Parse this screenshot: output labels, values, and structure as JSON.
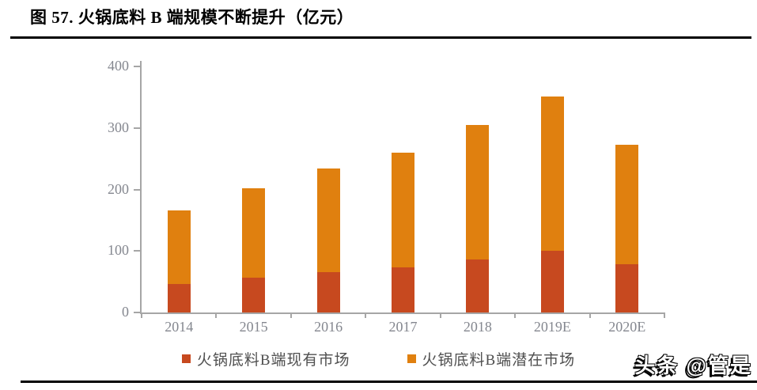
{
  "figure": {
    "title": "图 57. 火锅底料 B 端规模不断提升（亿元）"
  },
  "chart_data": {
    "type": "bar",
    "stacked": true,
    "title": "火锅底料 B 端规模不断提升",
    "unit": "亿元",
    "categories": [
      "2014",
      "2015",
      "2016",
      "2017",
      "2018",
      "2019E",
      "2020E"
    ],
    "series": [
      {
        "name": "火锅底料B端现有市场",
        "color": "#c7491f",
        "values": [
          46,
          57,
          66,
          73,
          86,
          100,
          78
        ]
      },
      {
        "name": "火锅底料B端潜在市场",
        "color": "#e0800f",
        "values": [
          119,
          145,
          169,
          186,
          219,
          251,
          194
        ]
      }
    ],
    "ylim": [
      0,
      400
    ],
    "yticks": [
      0,
      100,
      200,
      300,
      400
    ],
    "grid": false,
    "legend_position": "bottom",
    "axis_color": "#a6a6a6",
    "tick_label_color": "#84878f"
  },
  "watermark": {
    "text": "头条 @管是"
  }
}
